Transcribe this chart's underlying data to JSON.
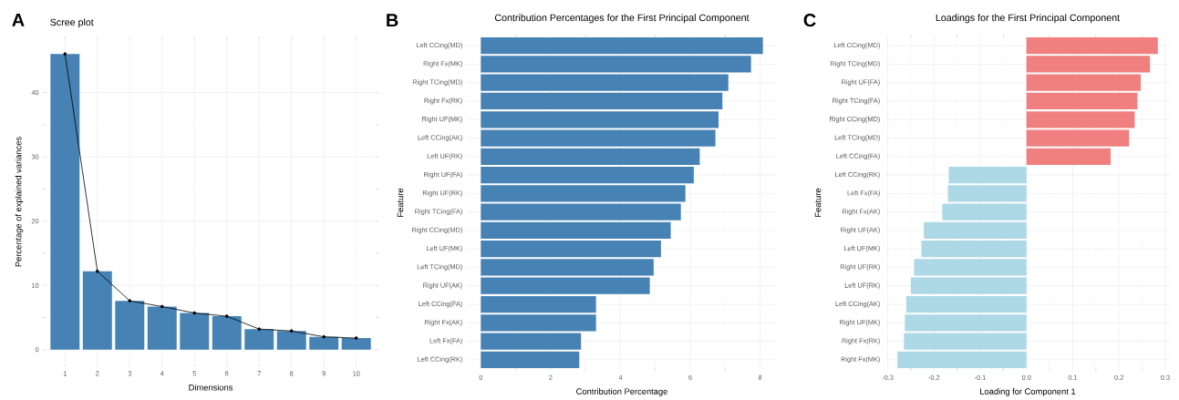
{
  "chart_data": [
    {
      "type": "bar",
      "title": "Scree plot",
      "xlabel": "Dimensions",
      "ylabel": "Percentage of explained variances",
      "annotations": [
        "A"
      ],
      "categories": [
        "1",
        "2",
        "3",
        "4",
        "5",
        "6",
        "7",
        "8",
        "9",
        "10"
      ],
      "series": [
        {
          "type": "bar",
          "color": "#4682b4",
          "values": [
            46.0,
            12.2,
            7.6,
            6.7,
            5.7,
            5.2,
            3.2,
            2.9,
            2.0,
            1.8
          ]
        },
        {
          "type": "line",
          "color": "#000000",
          "marker": "circle",
          "values": [
            46.0,
            12.2,
            7.6,
            6.7,
            5.7,
            5.2,
            3.2,
            2.9,
            2.0,
            1.8
          ]
        }
      ],
      "ylim": [
        -2.3,
        48.3
      ],
      "yticks": [
        0,
        10,
        20,
        30,
        40
      ],
      "grid": true
    },
    {
      "type": "bar",
      "orientation": "horizontal",
      "title": "Contribution Percentages for the First Principal Component",
      "xlabel": "Contribution Percentage",
      "ylabel": "Feature",
      "annotations": [
        "B"
      ],
      "categories": [
        "Left CCing(MD)",
        "Right Fx(MK)",
        "Right TCing(MD)",
        "Right Fx(RK)",
        "Right UF(MK)",
        "Left CCing(AK)",
        "Left UF(RK)",
        "Right UF(FA)",
        "Right UF(RK)",
        "Right TCing(FA)",
        "Right CCing(MD)",
        "Left UF(MK)",
        "Left TCing(MD)",
        "Right UF(AK)",
        "Left CCing(FA)",
        "Right Fx(AK)",
        "Left Fx(FA)",
        "Left CCing(RK)"
      ],
      "values": [
        8.08,
        7.74,
        7.09,
        6.92,
        6.81,
        6.72,
        6.27,
        6.1,
        5.86,
        5.73,
        5.44,
        5.16,
        4.95,
        4.84,
        3.3,
        3.3,
        2.87,
        2.82
      ],
      "color": "#4682b4",
      "xlim": [
        -0.4,
        8.48
      ],
      "xticks": [
        0,
        2,
        4,
        6,
        8
      ],
      "grid": true
    },
    {
      "type": "bar",
      "orientation": "horizontal",
      "title": "Loadings for the First Principal Component",
      "xlabel": "Loading for Component 1",
      "ylabel": "Feature",
      "annotations": [
        "C"
      ],
      "categories": [
        "Left CCing(MD)",
        "Right TCing(MD)",
        "Right UF(FA)",
        "Right TCing(FA)",
        "Right CCing(MD)",
        "Left TCing(MD)",
        "Left CCing(FA)",
        "Left CCing(RK)",
        "Left Fx(FA)",
        "Right Fx(AK)",
        "Right UF(AK)",
        "Left UF(MK)",
        "Right UF(RK)",
        "Left UF(RK)",
        "Left CCing(AK)",
        "Right UF(MK)",
        "Right Fx(RK)",
        "Right Fx(MK)"
      ],
      "values": [
        0.284,
        0.267,
        0.247,
        0.24,
        0.234,
        0.222,
        0.182,
        -0.168,
        -0.17,
        -0.182,
        -0.222,
        -0.227,
        -0.243,
        -0.25,
        -0.26,
        -0.263,
        -0.265,
        -0.279
      ],
      "colors": [
        "#f08080",
        "#f08080",
        "#f08080",
        "#f08080",
        "#f08080",
        "#f08080",
        "#f08080",
        "#add8e6",
        "#add8e6",
        "#add8e6",
        "#add8e6",
        "#add8e6",
        "#add8e6",
        "#add8e6",
        "#add8e6",
        "#add8e6",
        "#add8e6",
        "#add8e6"
      ],
      "xlim": [
        -0.307,
        0.312
      ],
      "xticks": [
        -0.3,
        -0.2,
        -0.1,
        {
          "value": 0,
          "label": "0.0"
        },
        0.1,
        0.2,
        0.3
      ],
      "grid": true
    }
  ]
}
